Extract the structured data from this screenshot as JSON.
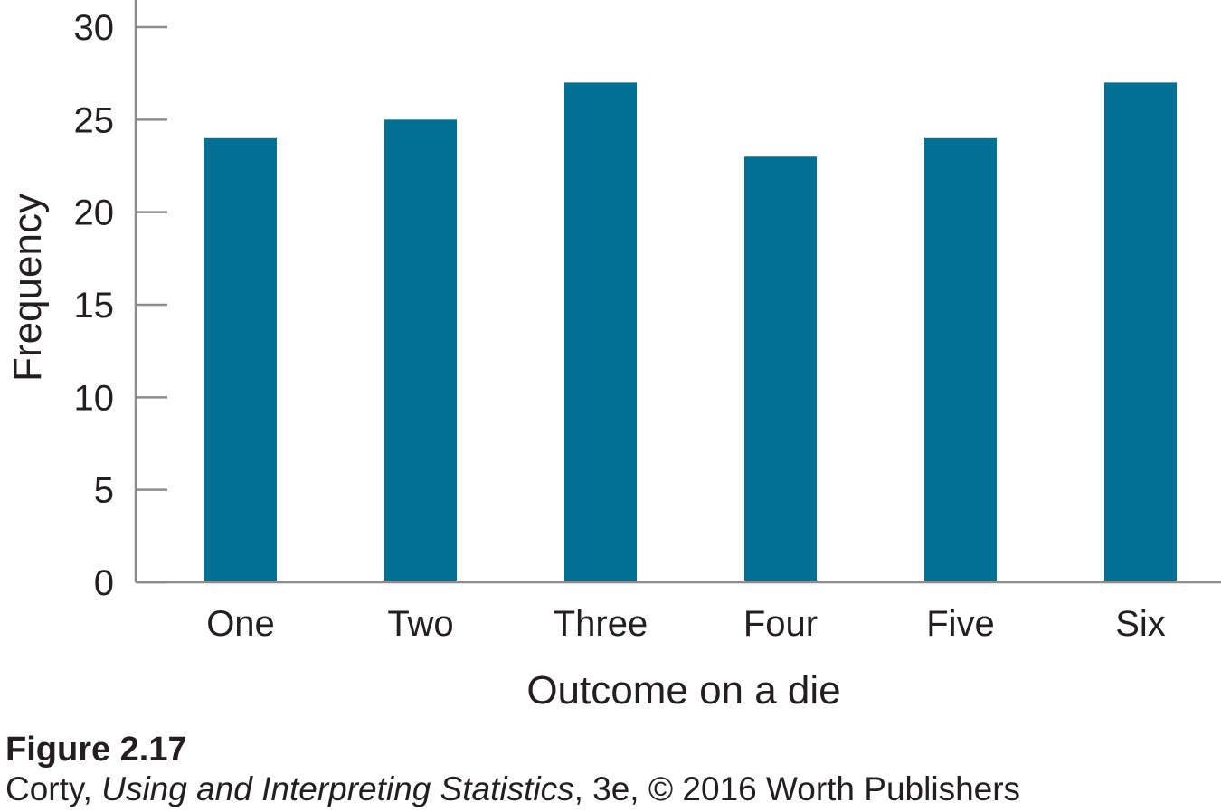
{
  "chart_data": {
    "type": "bar",
    "title": "",
    "categories": [
      "One",
      "Two",
      "Three",
      "Four",
      "Five",
      "Six"
    ],
    "values": [
      24,
      25,
      27,
      23,
      24,
      27
    ],
    "xlabel": "Outcome on a die",
    "ylabel": "Frequency",
    "ylim": [
      0,
      30
    ],
    "yticks": [
      "0",
      "5",
      "10",
      "15",
      "20",
      "25",
      "30"
    ],
    "bar_color": "#007094",
    "axis_color": "#8a8c8e",
    "grid": false
  },
  "caption": {
    "figure_label": "Figure 2.17",
    "author": "Corty, ",
    "book_title": "Using and Interpreting Statistics",
    "rest": ", 3e, © 2016 Worth Publishers"
  }
}
